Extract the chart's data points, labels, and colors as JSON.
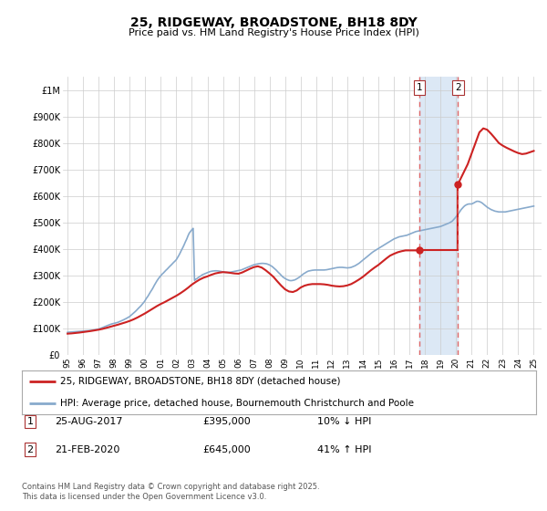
{
  "title": "25, RIDGEWAY, BROADSTONE, BH18 8DY",
  "subtitle": "Price paid vs. HM Land Registry's House Price Index (HPI)",
  "footer": "Contains HM Land Registry data © Crown copyright and database right 2025.\nThis data is licensed under the Open Government Licence v3.0.",
  "legend_line1": "25, RIDGEWAY, BROADSTONE, BH18 8DY (detached house)",
  "legend_line2": "HPI: Average price, detached house, Bournemouth Christchurch and Poole",
  "transaction1_label": "1",
  "transaction1_date": "25-AUG-2017",
  "transaction1_price": "£395,000",
  "transaction1_hpi": "10% ↓ HPI",
  "transaction1_year": 2017.64,
  "transaction1_price_val": 395000,
  "transaction2_label": "2",
  "transaction2_date": "21-FEB-2020",
  "transaction2_price": "£645,000",
  "transaction2_hpi": "41% ↑ HPI",
  "transaction2_year": 2020.13,
  "transaction2_price_val": 645000,
  "red_color": "#cc2222",
  "blue_color": "#88aacc",
  "span_color": "#dce8f5",
  "dashed_color": "#dd6666",
  "bg_color": "#ffffff",
  "grid_color": "#cccccc",
  "ylim": [
    0,
    1050000
  ],
  "xlim": [
    1994.7,
    2025.5
  ],
  "hpi_data_x": [
    1995.0,
    1995.08,
    1995.17,
    1995.25,
    1995.33,
    1995.42,
    1995.5,
    1995.58,
    1995.67,
    1995.75,
    1995.83,
    1995.92,
    1996.0,
    1996.08,
    1996.17,
    1996.25,
    1996.33,
    1996.42,
    1996.5,
    1996.58,
    1996.67,
    1996.75,
    1996.83,
    1996.92,
    1997.0,
    1997.08,
    1997.17,
    1997.25,
    1997.33,
    1997.42,
    1997.5,
    1997.58,
    1997.67,
    1997.75,
    1997.83,
    1997.92,
    1998.0,
    1998.08,
    1998.17,
    1998.25,
    1998.33,
    1998.42,
    1998.5,
    1998.58,
    1998.67,
    1998.75,
    1998.83,
    1998.92,
    1999.0,
    1999.08,
    1999.17,
    1999.25,
    1999.33,
    1999.42,
    1999.5,
    1999.58,
    1999.67,
    1999.75,
    1999.83,
    1999.92,
    2000.0,
    2000.08,
    2000.17,
    2000.25,
    2000.33,
    2000.42,
    2000.5,
    2000.58,
    2000.67,
    2000.75,
    2000.83,
    2000.92,
    2001.0,
    2001.08,
    2001.17,
    2001.25,
    2001.33,
    2001.42,
    2001.5,
    2001.58,
    2001.67,
    2001.75,
    2001.83,
    2001.92,
    2002.0,
    2002.08,
    2002.17,
    2002.25,
    2002.33,
    2002.42,
    2002.5,
    2002.58,
    2002.67,
    2002.75,
    2002.83,
    2002.92,
    2003.0,
    2003.08,
    2003.17,
    2003.25,
    2003.33,
    2003.42,
    2003.5,
    2003.58,
    2003.67,
    2003.75,
    2003.83,
    2003.92,
    2004.0,
    2004.08,
    2004.17,
    2004.25,
    2004.33,
    2004.42,
    2004.5,
    2004.58,
    2004.67,
    2004.75,
    2004.83,
    2004.92,
    2005.0,
    2005.08,
    2005.17,
    2005.25,
    2005.33,
    2005.42,
    2005.5,
    2005.58,
    2005.67,
    2005.75,
    2005.83,
    2005.92,
    2006.0,
    2006.08,
    2006.17,
    2006.25,
    2006.33,
    2006.42,
    2006.5,
    2006.58,
    2006.67,
    2006.75,
    2006.83,
    2006.92,
    2007.0,
    2007.08,
    2007.17,
    2007.25,
    2007.33,
    2007.42,
    2007.5,
    2007.58,
    2007.67,
    2007.75,
    2007.83,
    2007.92,
    2008.0,
    2008.08,
    2008.17,
    2008.25,
    2008.33,
    2008.42,
    2008.5,
    2008.58,
    2008.67,
    2008.75,
    2008.83,
    2008.92,
    2009.0,
    2009.08,
    2009.17,
    2009.25,
    2009.33,
    2009.42,
    2009.5,
    2009.58,
    2009.67,
    2009.75,
    2009.83,
    2009.92,
    2010.0,
    2010.08,
    2010.17,
    2010.25,
    2010.33,
    2010.42,
    2010.5,
    2010.58,
    2010.67,
    2010.75,
    2010.83,
    2010.92,
    2011.0,
    2011.08,
    2011.17,
    2011.25,
    2011.33,
    2011.42,
    2011.5,
    2011.58,
    2011.67,
    2011.75,
    2011.83,
    2011.92,
    2012.0,
    2012.08,
    2012.17,
    2012.25,
    2012.33,
    2012.42,
    2012.5,
    2012.58,
    2012.67,
    2012.75,
    2012.83,
    2012.92,
    2013.0,
    2013.08,
    2013.17,
    2013.25,
    2013.33,
    2013.42,
    2013.5,
    2013.58,
    2013.67,
    2013.75,
    2013.83,
    2013.92,
    2014.0,
    2014.08,
    2014.17,
    2014.25,
    2014.33,
    2014.42,
    2014.5,
    2014.58,
    2014.67,
    2014.75,
    2014.83,
    2014.92,
    2015.0,
    2015.08,
    2015.17,
    2015.25,
    2015.33,
    2015.42,
    2015.5,
    2015.58,
    2015.67,
    2015.75,
    2015.83,
    2015.92,
    2016.0,
    2016.08,
    2016.17,
    2016.25,
    2016.33,
    2016.42,
    2016.5,
    2016.58,
    2016.67,
    2016.75,
    2016.83,
    2016.92,
    2017.0,
    2017.08,
    2017.17,
    2017.25,
    2017.33,
    2017.42,
    2017.5,
    2017.58,
    2017.67,
    2017.75,
    2017.83,
    2017.92,
    2018.0,
    2018.08,
    2018.17,
    2018.25,
    2018.33,
    2018.42,
    2018.5,
    2018.58,
    2018.67,
    2018.75,
    2018.83,
    2018.92,
    2019.0,
    2019.08,
    2019.17,
    2019.25,
    2019.33,
    2019.42,
    2019.5,
    2019.58,
    2019.67,
    2019.75,
    2019.83,
    2019.92,
    2020.0,
    2020.08,
    2020.17,
    2020.25,
    2020.33,
    2020.42,
    2020.5,
    2020.58,
    2020.67,
    2020.75,
    2020.83,
    2020.92,
    2021.0,
    2021.08,
    2021.17,
    2021.25,
    2021.33,
    2021.42,
    2021.5,
    2021.58,
    2021.67,
    2021.75,
    2021.83,
    2021.92,
    2022.0,
    2022.08,
    2022.17,
    2022.25,
    2022.33,
    2022.42,
    2022.5,
    2022.58,
    2022.67,
    2022.75,
    2022.83,
    2022.92,
    2023.0,
    2023.08,
    2023.17,
    2023.25,
    2023.33,
    2023.42,
    2023.5,
    2023.58,
    2023.67,
    2023.75,
    2023.83,
    2023.92,
    2024.0,
    2024.08,
    2024.17,
    2024.25,
    2024.33,
    2024.42,
    2024.5,
    2024.58,
    2024.67,
    2024.75,
    2024.83,
    2024.92,
    2025.0
  ],
  "hpi_data_y": [
    86000,
    86500,
    87000,
    87500,
    87800,
    88000,
    88500,
    89000,
    89200,
    89500,
    89800,
    90000,
    90200,
    90500,
    91000,
    91500,
    92000,
    92500,
    93000,
    93800,
    94500,
    95500,
    96500,
    97500,
    98500,
    100000,
    102000,
    104000,
    106000,
    108000,
    110000,
    112000,
    114000,
    116000,
    117500,
    119000,
    120000,
    121000,
    122500,
    124000,
    126000,
    128000,
    130000,
    132500,
    135000,
    137500,
    140000,
    143000,
    146000,
    150000,
    154000,
    158000,
    163000,
    168000,
    173000,
    178000,
    183000,
    188000,
    194000,
    200000,
    207000,
    215000,
    222000,
    230000,
    238000,
    246000,
    254000,
    263000,
    272000,
    280000,
    287000,
    294000,
    300000,
    305000,
    310000,
    315000,
    320000,
    325000,
    330000,
    335000,
    340000,
    345000,
    350000,
    355000,
    360000,
    368000,
    377000,
    386000,
    396000,
    406000,
    416000,
    427000,
    438000,
    450000,
    460000,
    467000,
    473000,
    478000,
    282000,
    286000,
    289000,
    293000,
    296000,
    299000,
    303000,
    305000,
    307000,
    309000,
    311000,
    313000,
    315000,
    316000,
    317000,
    317500,
    318000,
    318000,
    317500,
    317000,
    316000,
    315000,
    314000,
    313000,
    312000,
    312000,
    312000,
    312500,
    313000,
    314000,
    315000,
    316000,
    317000,
    318000,
    319000,
    320000,
    321000,
    323000,
    325000,
    327000,
    329000,
    331000,
    333000,
    335000,
    337000,
    339000,
    341000,
    342000,
    343000,
    344000,
    345000,
    345500,
    346000,
    346000,
    345500,
    345000,
    344000,
    342000,
    340000,
    337000,
    334000,
    330000,
    326000,
    321000,
    316000,
    311000,
    306000,
    301000,
    296000,
    292000,
    289000,
    286000,
    284000,
    282000,
    281000,
    281000,
    282000,
    283000,
    285000,
    288000,
    291000,
    294000,
    298000,
    302000,
    306000,
    309000,
    312000,
    315000,
    317000,
    318000,
    319000,
    320000,
    320500,
    321000,
    321000,
    321000,
    321000,
    321000,
    321000,
    321000,
    321000,
    321500,
    322000,
    323000,
    324000,
    325000,
    326000,
    327000,
    328000,
    329000,
    330000,
    330500,
    331000,
    331000,
    331000,
    330500,
    330000,
    329500,
    329000,
    329500,
    330000,
    331000,
    333000,
    335000,
    337000,
    340000,
    343000,
    346000,
    350000,
    354000,
    358000,
    362000,
    366000,
    370000,
    374000,
    378000,
    382000,
    386000,
    390000,
    393000,
    396000,
    399000,
    402000,
    405000,
    408000,
    411000,
    414000,
    417000,
    420000,
    423000,
    426000,
    429000,
    432000,
    435000,
    438000,
    440000,
    442000,
    444000,
    446000,
    447000,
    448000,
    449000,
    450000,
    451000,
    452000,
    454000,
    456000,
    458000,
    460000,
    462000,
    464000,
    466000,
    467000,
    468000,
    469000,
    470000,
    471000,
    472000,
    473000,
    474000,
    475000,
    476000,
    477000,
    478000,
    479000,
    480000,
    481000,
    482000,
    483000,
    484000,
    485000,
    487000,
    489000,
    491000,
    493000,
    495000,
    497000,
    499000,
    502000,
    505000,
    510000,
    516000,
    522000,
    528000,
    535000,
    542000,
    549000,
    555000,
    560000,
    564000,
    567000,
    569000,
    570000,
    570000,
    570000,
    572000,
    575000,
    578000,
    580000,
    580000,
    579000,
    577000,
    574000,
    570000,
    566000,
    562000,
    558000,
    555000,
    552000,
    549000,
    547000,
    545000,
    543000,
    542000,
    541000,
    540000,
    540000,
    540000,
    540000,
    540000,
    540000,
    541000,
    542000,
    543000,
    544000,
    545000,
    546000,
    547000,
    548000,
    549000,
    550000,
    551000,
    552000,
    553000,
    554000,
    555000,
    556000,
    557000,
    558000,
    559000,
    560000,
    561000,
    562000
  ],
  "red_data_x_pre": [
    1995.0,
    1995.25,
    1995.5,
    1995.75,
    1996.0,
    1996.25,
    1996.5,
    1996.75,
    1997.0,
    1997.25,
    1997.5,
    1997.75,
    1998.0,
    1998.25,
    1998.5,
    1998.75,
    1999.0,
    1999.25,
    1999.5,
    1999.75,
    2000.0,
    2000.25,
    2000.5,
    2000.75,
    2001.0,
    2001.25,
    2001.5,
    2001.75,
    2002.0,
    2002.25,
    2002.5,
    2002.75,
    2003.0,
    2003.25,
    2003.5,
    2003.75,
    2004.0,
    2004.25,
    2004.5,
    2004.75,
    2005.0,
    2005.25,
    2005.5,
    2005.75,
    2006.0,
    2006.25,
    2006.5,
    2006.75,
    2007.0,
    2007.25,
    2007.5,
    2007.75,
    2008.0,
    2008.25,
    2008.5,
    2008.75,
    2009.0,
    2009.25,
    2009.5,
    2009.75,
    2010.0,
    2010.25,
    2010.5,
    2010.75,
    2011.0,
    2011.25,
    2011.5,
    2011.75,
    2012.0,
    2012.25,
    2012.5,
    2012.75,
    2013.0,
    2013.25,
    2013.5,
    2013.75,
    2014.0,
    2014.25,
    2014.5,
    2014.75,
    2015.0,
    2015.25,
    2015.5,
    2015.75,
    2016.0,
    2016.25,
    2016.5,
    2016.75,
    2017.0,
    2017.25,
    2017.64
  ],
  "red_data_y_pre": [
    81000,
    82000,
    83500,
    85000,
    87000,
    89000,
    91000,
    93500,
    96000,
    99000,
    103000,
    107000,
    111000,
    115000,
    119500,
    124000,
    129000,
    135000,
    142000,
    150000,
    158000,
    167000,
    176000,
    185000,
    193000,
    200000,
    208000,
    216000,
    224000,
    233000,
    243000,
    254000,
    266000,
    276000,
    285000,
    292000,
    297000,
    303000,
    308000,
    311000,
    313000,
    312000,
    310000,
    308000,
    307000,
    312000,
    319000,
    326000,
    332000,
    335000,
    330000,
    320000,
    308000,
    295000,
    278000,
    262000,
    248000,
    240000,
    238000,
    244000,
    255000,
    262000,
    266000,
    268000,
    268000,
    268000,
    267000,
    265000,
    262000,
    260000,
    259000,
    260000,
    263000,
    268000,
    276000,
    285000,
    295000,
    307000,
    319000,
    330000,
    340000,
    352000,
    364000,
    375000,
    382000,
    388000,
    392000,
    395000,
    395000,
    395000,
    395000
  ],
  "red_data_x_post": [
    2020.13,
    2020.25,
    2020.5,
    2020.75,
    2021.0,
    2021.25,
    2021.5,
    2021.75,
    2022.0,
    2022.25,
    2022.5,
    2022.75,
    2023.0,
    2023.25,
    2023.5,
    2023.75,
    2024.0,
    2024.25,
    2024.5,
    2024.75,
    2025.0
  ],
  "red_data_y_post": [
    645000,
    660000,
    690000,
    720000,
    760000,
    800000,
    840000,
    855000,
    850000,
    835000,
    818000,
    800000,
    790000,
    782000,
    775000,
    768000,
    762000,
    758000,
    760000,
    765000,
    770000
  ]
}
